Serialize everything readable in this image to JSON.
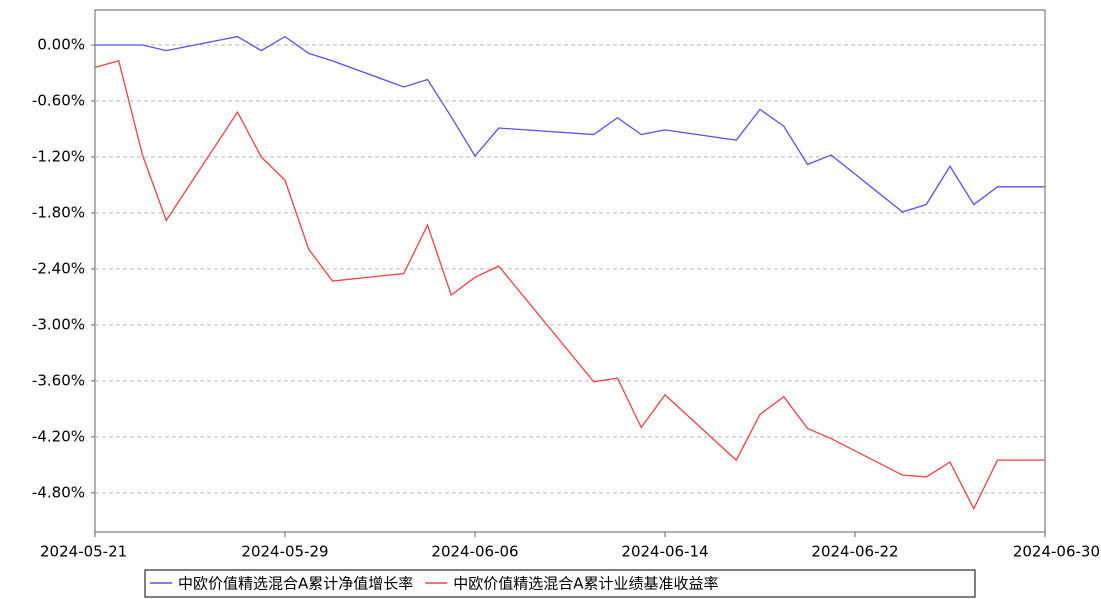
{
  "chart_data": {
    "type": "line",
    "x": [
      "2024-05-21",
      "2024-05-22",
      "2024-05-23",
      "2024-05-24",
      "2024-05-27",
      "2024-05-28",
      "2024-05-29",
      "2024-05-30",
      "2024-05-31",
      "2024-06-03",
      "2024-06-04",
      "2024-06-05",
      "2024-06-06",
      "2024-06-07",
      "2024-06-11",
      "2024-06-12",
      "2024-06-13",
      "2024-06-14",
      "2024-06-17",
      "2024-06-18",
      "2024-06-19",
      "2024-06-20",
      "2024-06-21",
      "2024-06-24",
      "2024-06-25",
      "2024-06-26",
      "2024-06-27",
      "2024-06-28",
      "2024-06-30"
    ],
    "series": [
      {
        "name": "中欧价值精选混合A累计净值增长率",
        "color": "#5555ee",
        "values": [
          0,
          0,
          0,
          -0.06,
          0.09,
          -0.06,
          0.09,
          -0.09,
          -0.17,
          -0.45,
          -0.37,
          -0.77,
          -1.19,
          -0.89,
          -0.96,
          -0.78,
          -0.96,
          -0.91,
          -1.02,
          -0.69,
          -0.87,
          -1.28,
          -1.18,
          -1.79,
          -1.71,
          -1.3,
          -1.71,
          -1.52,
          -1.52
        ]
      },
      {
        "name": "中欧价值精选混合A累计业绩基准收益率",
        "color": "#ee4444",
        "values": [
          -0.24,
          -0.17,
          -1.18,
          -1.88,
          -0.72,
          -1.2,
          -1.45,
          -2.19,
          -2.53,
          -2.45,
          -1.93,
          -2.68,
          -2.49,
          -2.37,
          -3.61,
          -3.57,
          -4.1,
          -3.75,
          -4.45,
          -3.96,
          -3.77,
          -4.11,
          -4.22,
          -4.61,
          -4.63,
          -4.47,
          -4.97,
          -4.45,
          -4.45
        ]
      }
    ],
    "xlim": [
      "2024-05-21",
      "2024-06-30"
    ],
    "xticks": [
      "2024-05-21",
      "2024-05-29",
      "2024-06-06",
      "2024-06-14",
      "2024-06-22",
      "2024-06-30"
    ],
    "ylim": [
      -5.22,
      0.375
    ],
    "yticks": [
      {
        "value": 0,
        "label": "0.00%"
      },
      {
        "value": -0.6,
        "label": "-0.60%"
      },
      {
        "value": -1.2,
        "label": "-1.20%"
      },
      {
        "value": -1.8,
        "label": "-1.80%"
      },
      {
        "value": -2.4,
        "label": "-2.40%"
      },
      {
        "value": -3.0,
        "label": "-3.00%"
      },
      {
        "value": -3.6,
        "label": "-3.60%"
      },
      {
        "value": -4.2,
        "label": "-4.20%"
      },
      {
        "value": -4.8,
        "label": "-4.80%"
      }
    ],
    "grid": true
  }
}
